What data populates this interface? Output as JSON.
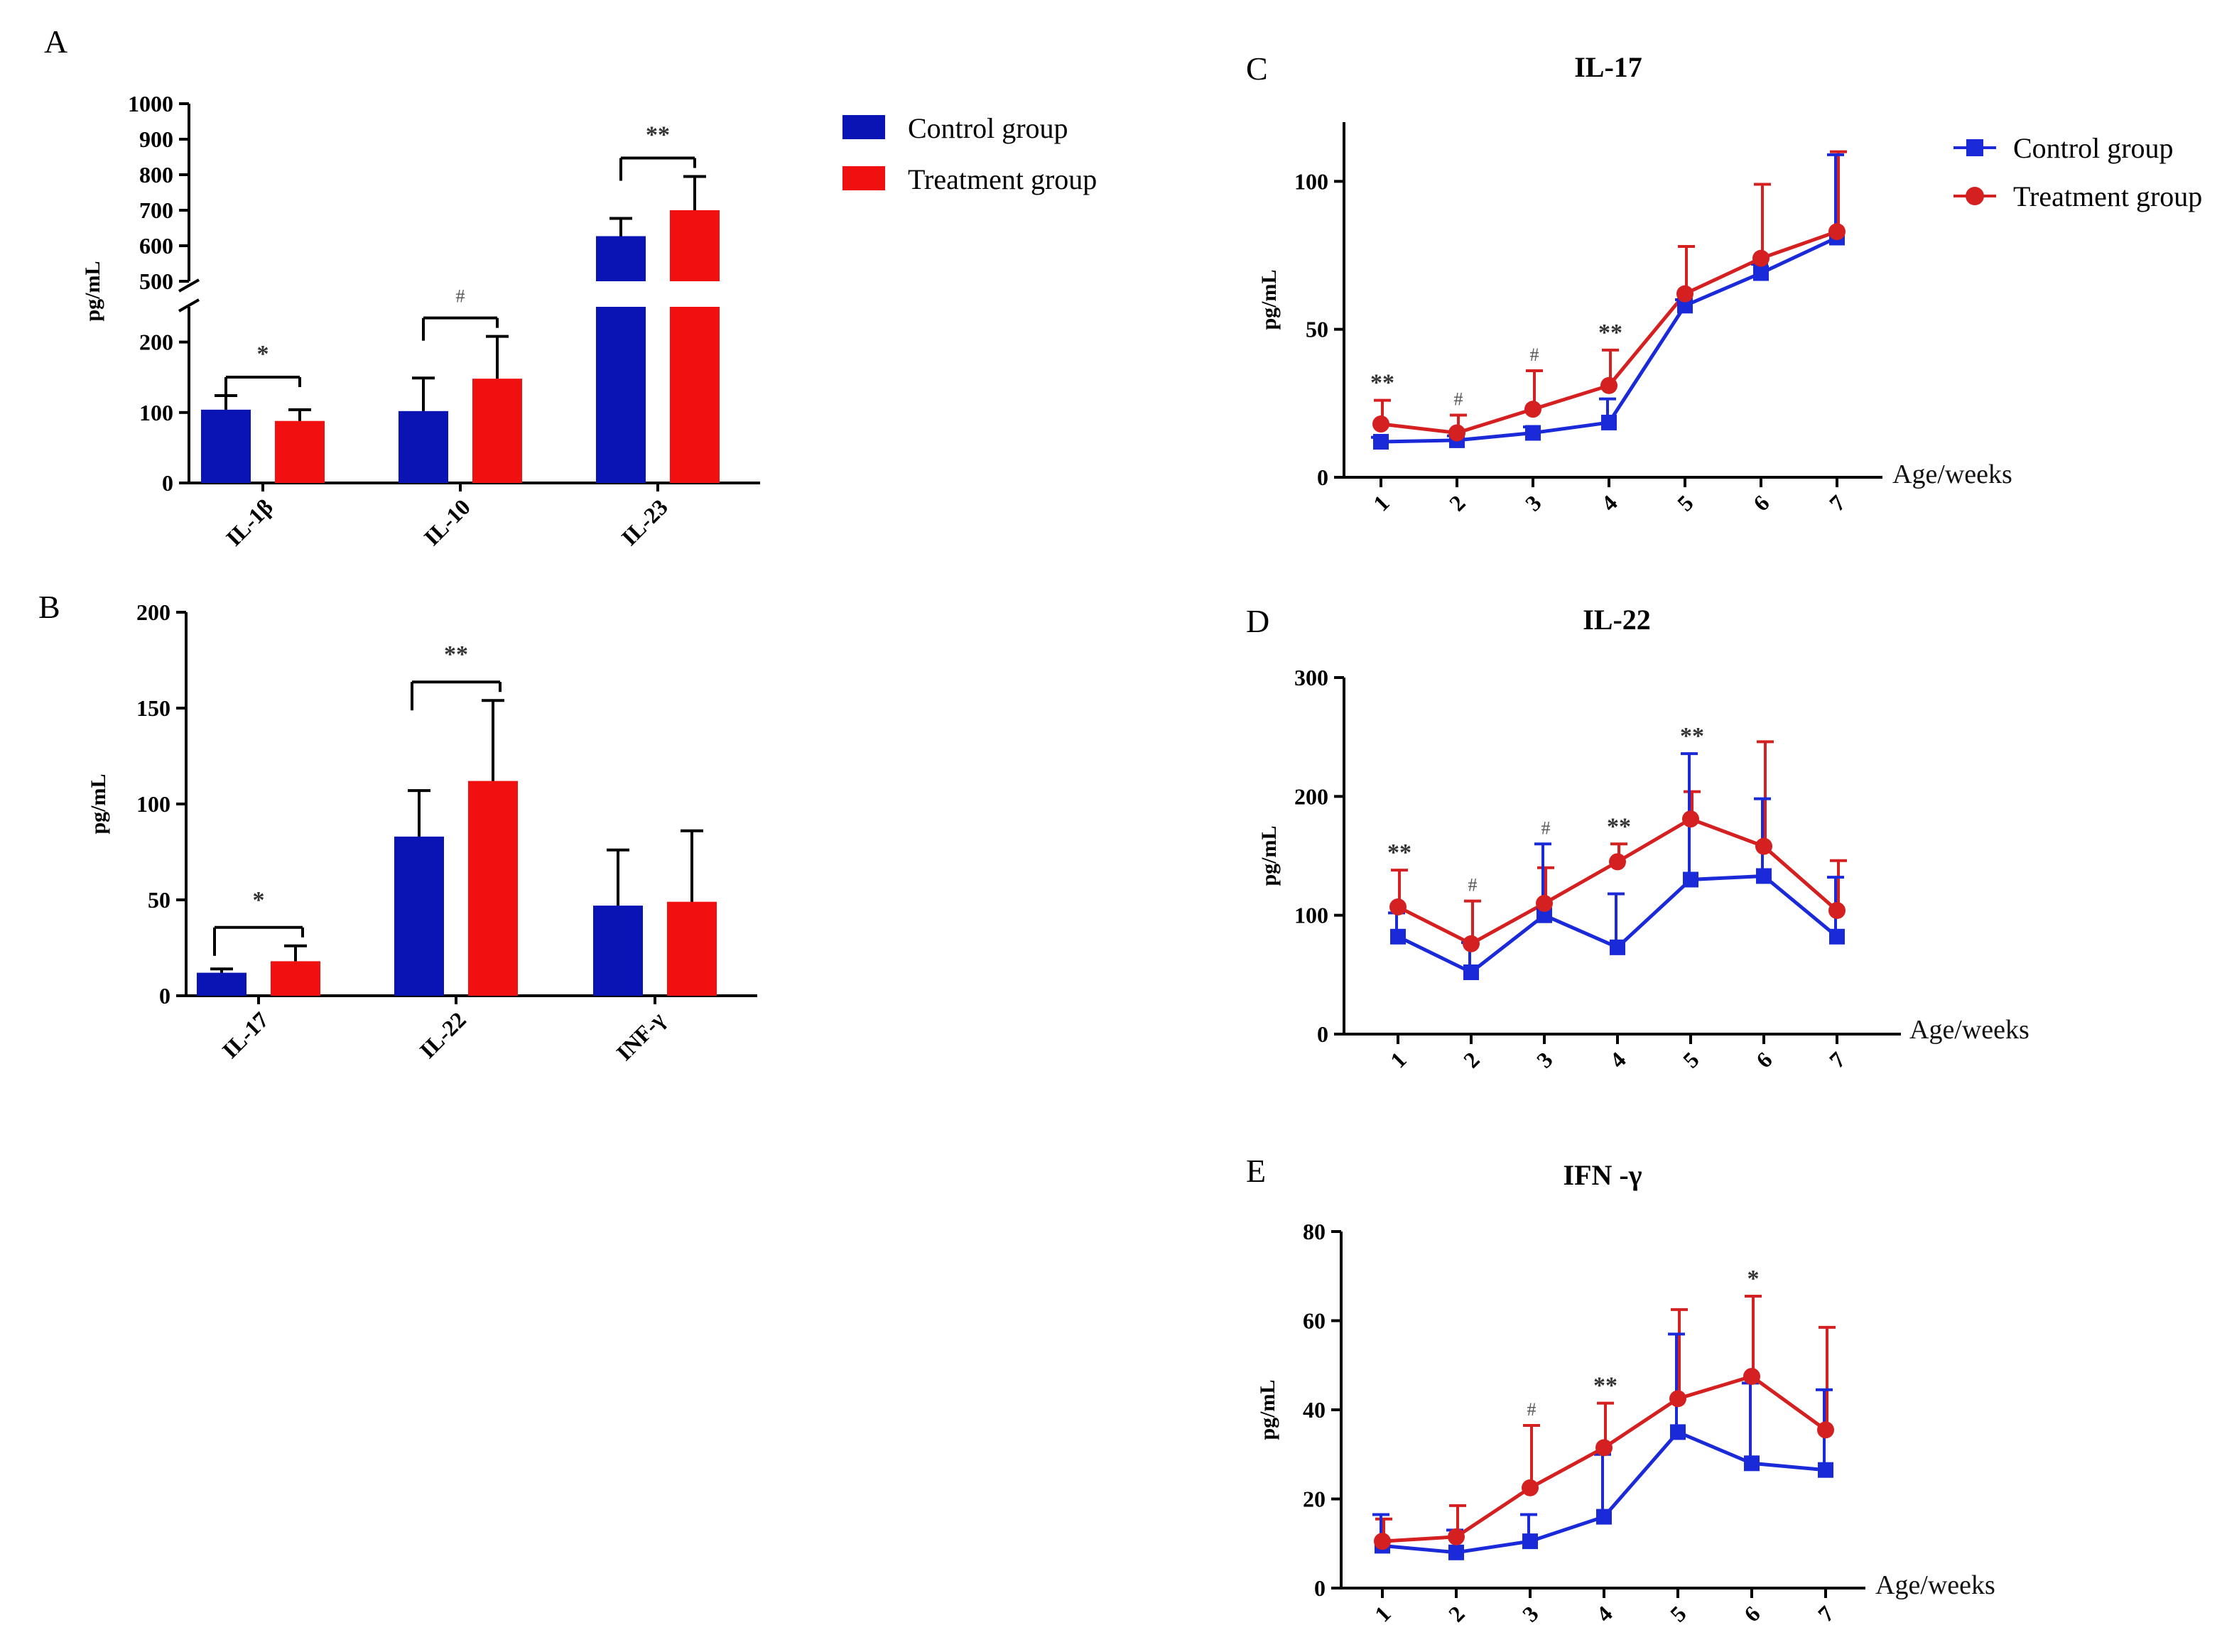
{
  "colors": {
    "control": "#0a14b4",
    "treatment": "#f01010",
    "control_line": "#1a2ad8",
    "treatment_line": "#d42020"
  },
  "legend_bars": {
    "control": "Control group",
    "treatment": "Treatment group"
  },
  "legend_lines": {
    "control": "Control group",
    "treatment": "Treatment group"
  },
  "chart_data": [
    {
      "panel": "A",
      "type": "bar",
      "ylabel": "pg/mL",
      "categories": [
        "IL-1β",
        "IL-10",
        "IL-23"
      ],
      "axis_break": {
        "lower": [
          0,
          250
        ],
        "upper": [
          500,
          1000
        ]
      },
      "lower_ticks": [
        "0",
        "100",
        "200"
      ],
      "upper_ticks": [
        "500",
        "600",
        "700",
        "800",
        "900",
        "1000"
      ],
      "series": [
        {
          "name": "Control group",
          "values": [
            104,
            102,
            627
          ],
          "errors": [
            20,
            47,
            50
          ]
        },
        {
          "name": "Treatment group",
          "values": [
            88,
            148,
            700
          ],
          "errors": [
            16,
            60,
            95
          ]
        }
      ],
      "significance": [
        "*",
        "#",
        "**"
      ]
    },
    {
      "panel": "B",
      "type": "bar",
      "ylabel": "pg/mL",
      "categories": [
        "IL-17",
        "IL-22",
        "INF-γ"
      ],
      "ylim": [
        0,
        200
      ],
      "yticks": [
        "0",
        "50",
        "100",
        "150",
        "200"
      ],
      "series": [
        {
          "name": "Control group",
          "values": [
            12,
            83,
            47
          ],
          "errors": [
            2,
            24,
            29
          ]
        },
        {
          "name": "Treatment group",
          "values": [
            18,
            112,
            49
          ],
          "errors": [
            8,
            42,
            37
          ]
        }
      ],
      "significance": [
        "*",
        "**",
        ""
      ]
    },
    {
      "panel": "C",
      "type": "line",
      "title": "IL-17",
      "ylabel": "pg/mL",
      "xlabel": "Age/weeks",
      "x": [
        "1",
        "2",
        "3",
        "4",
        "5",
        "6",
        "7"
      ],
      "ylim": [
        0,
        120
      ],
      "yticks": [
        "0",
        "50",
        "100"
      ],
      "series": [
        {
          "name": "Control group",
          "values": [
            12,
            12.5,
            15,
            18.5,
            58,
            69,
            81
          ],
          "errors": [
            1.5,
            1.5,
            2,
            8,
            2,
            3,
            28
          ]
        },
        {
          "name": "Treatment group",
          "values": [
            18,
            15,
            23,
            31,
            62,
            74,
            83
          ],
          "errors": [
            8,
            6,
            13,
            12,
            16,
            25,
            27
          ]
        }
      ],
      "significance": [
        "**",
        "#",
        "#",
        "**",
        "",
        "",
        ""
      ]
    },
    {
      "panel": "D",
      "type": "line",
      "title": "IL-22",
      "ylabel": "pg/mL",
      "xlabel": "Age/weeks",
      "x": [
        "1",
        "2",
        "3",
        "4",
        "5",
        "6",
        "7"
      ],
      "ylim": [
        0,
        300
      ],
      "yticks": [
        "0",
        "100",
        "200",
        "300"
      ],
      "series": [
        {
          "name": "Control group",
          "values": [
            82,
            52,
            100,
            73,
            130,
            133,
            82
          ],
          "errors": [
            20,
            25,
            60,
            45,
            106,
            65,
            50
          ]
        },
        {
          "name": "Treatment group",
          "values": [
            107,
            76,
            110,
            145,
            181,
            158,
            104
          ],
          "errors": [
            31,
            36,
            30,
            15,
            23,
            88,
            42
          ]
        }
      ],
      "significance": [
        "**",
        "#",
        "#",
        "**",
        "**",
        "",
        ""
      ]
    },
    {
      "panel": "E",
      "type": "line",
      "title": "IFN -γ",
      "ylabel": "pg/mL",
      "xlabel": "Age/weeks",
      "x": [
        "1",
        "2",
        "3",
        "4",
        "5",
        "6",
        "7"
      ],
      "ylim": [
        0,
        80
      ],
      "yticks": [
        "0",
        "20",
        "40",
        "60",
        "80"
      ],
      "series": [
        {
          "name": "Control group",
          "values": [
            9.5,
            8,
            10.5,
            16,
            35,
            28,
            26.5
          ],
          "errors": [
            7,
            5,
            6,
            14,
            22,
            18,
            18
          ]
        },
        {
          "name": "Treatment group",
          "values": [
            10.5,
            11.5,
            22.5,
            31.5,
            42.5,
            47.5,
            35.5
          ],
          "errors": [
            5,
            7,
            14,
            10,
            20,
            18,
            23
          ]
        }
      ],
      "significance": [
        "",
        "",
        "#",
        "**",
        "",
        "*",
        ""
      ]
    }
  ]
}
